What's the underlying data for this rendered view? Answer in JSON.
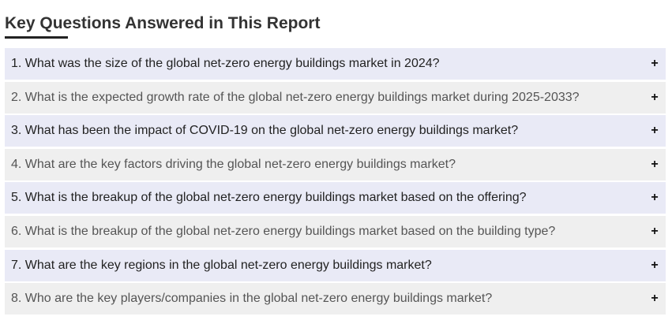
{
  "section": {
    "title": "Key Questions Answered in This Report"
  },
  "faq": {
    "items": [
      {
        "question": "1. What was the size of the global net-zero energy buildings market in 2024?",
        "icon": "+"
      },
      {
        "question": "2. What is the expected growth rate of the global net-zero energy buildings market during 2025-2033?",
        "icon": "+"
      },
      {
        "question": "3. What has been the impact of COVID-19 on the global net-zero energy buildings market?",
        "icon": "+"
      },
      {
        "question": "4. What are the key factors driving the global net-zero energy buildings market?",
        "icon": "+"
      },
      {
        "question": "5. What is the breakup of the global net-zero energy buildings market based on the offering?",
        "icon": "+"
      },
      {
        "question": "6. What is the breakup of the global net-zero energy buildings market based on the building type?",
        "icon": "+"
      },
      {
        "question": "7. What are the key regions in the global net-zero energy buildings market?",
        "icon": "+"
      },
      {
        "question": "8. Who are the key players/companies in the global net-zero energy buildings market?",
        "icon": "+"
      }
    ]
  },
  "colors": {
    "odd_row": "#e9eaf6",
    "even_row": "#efefef",
    "title": "#333333",
    "underline": "#222222"
  }
}
